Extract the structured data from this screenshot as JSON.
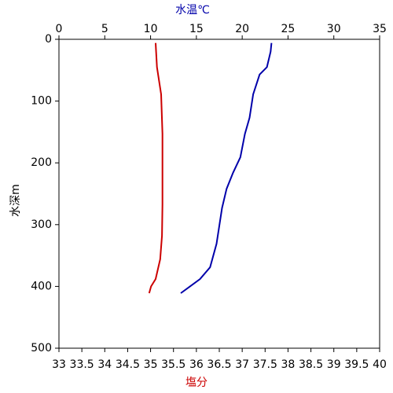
{
  "chart_data": {
    "type": "profile",
    "x_label": "塩分",
    "x2_label": "水温℃",
    "y_label": "水深m",
    "xlim": [
      33,
      40
    ],
    "xticks": [
      33,
      33.5,
      34,
      34.5,
      35,
      35.5,
      36,
      36.5,
      37,
      37.5,
      38,
      38.5,
      39,
      39.5,
      40
    ],
    "x2lim": [
      0,
      35
    ],
    "x2ticks": [
      0,
      5,
      10,
      15,
      20,
      25,
      30,
      35
    ],
    "ylim": [
      0,
      500
    ],
    "yticks": [
      0,
      100,
      200,
      300,
      400,
      500
    ],
    "y_inverted": true,
    "x_label_color": "#cc0000",
    "x2_label_color": "#0000aa",
    "series": [
      {
        "color": "#0000aa",
        "axis": "x2",
        "values": [
          23.2,
          23.1,
          22.7,
          21.9,
          21.2,
          20.8,
          20.3,
          19.8,
          19.0,
          18.3,
          17.8,
          17.2,
          16.5,
          15.4,
          14.3,
          13.3
        ],
        "depth": [
          6,
          20,
          45,
          57,
          89,
          127,
          153,
          191,
          216,
          242,
          273,
          331,
          369,
          388,
          400,
          411
        ]
      },
      {
        "color": "#cc0000",
        "axis": "x",
        "values": [
          35.11,
          35.12,
          35.14,
          35.23,
          35.26,
          35.26,
          35.25,
          35.21,
          35.11,
          35.01,
          34.97
        ],
        "depth": [
          6,
          20,
          45,
          89,
          153,
          267,
          318,
          356,
          388,
          400,
          411
        ]
      }
    ]
  }
}
